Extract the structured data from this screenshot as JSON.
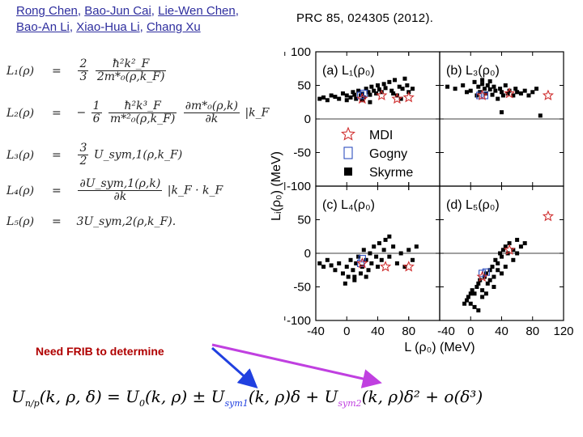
{
  "authors": {
    "line1": [
      {
        "name": "Rong Chen",
        "sep": ", "
      },
      {
        "name": "Bao-Jun Cai",
        "sep": ", "
      },
      {
        "name": "Lie-Wen Chen",
        "sep": ","
      }
    ],
    "line2": [
      {
        "name": "Bao-An Li",
        "sep": ", "
      },
      {
        "name": "Xiao-Hua Li",
        "sep": ", "
      },
      {
        "name": "Chang Xu",
        "sep": ""
      }
    ]
  },
  "reference": "PRC 85, 024305 (2012).",
  "equations": [
    {
      "lhs": "L₁(ρ)",
      "rhs_prefix": "",
      "frac1_num": "2",
      "frac1_den": "3",
      "frac2_num": "ħ²k²_F",
      "frac2_den": "2m*₀(ρ,k_F)",
      "suffix": ""
    },
    {
      "lhs": "L₂(ρ)",
      "rhs_prefix": "−",
      "frac1_num": "1",
      "frac1_den": "6",
      "frac2_num": "ħ²k³_F",
      "frac2_den": "m*²₀(ρ,k_F)",
      "frac3_num": "∂m*₀(ρ,k)",
      "frac3_den": "∂k",
      "suffix": "|k_F"
    },
    {
      "lhs": "L₃(ρ)",
      "rhs_prefix": "",
      "frac1_num": "3",
      "frac1_den": "2",
      "frac2_num": "",
      "frac2_den": "",
      "suffix": "U_sym,1(ρ,k_F)"
    },
    {
      "lhs": "L₄(ρ)",
      "rhs_prefix": "",
      "frac1_num": "∂U_sym,1(ρ,k)",
      "frac1_den": "∂k",
      "frac2_num": "",
      "frac2_den": "",
      "suffix": "|k_F · k_F"
    },
    {
      "lhs": "L₅(ρ)",
      "rhs_prefix": "",
      "frac1_num": "",
      "frac1_den": "",
      "frac2_num": "",
      "frac2_den": "",
      "suffix": "3U_sym,2(ρ,k_F)."
    }
  ],
  "note": "Need FRIB to determine",
  "formula": {
    "part1": "U",
    "sub1": "n/p",
    "part2": "(k, ρ, δ) = U",
    "sub2": "0",
    "part3": "(k, ρ) ± U",
    "sub3": "sym1",
    "part4": "(k, ρ)δ + U",
    "sub4": "sym2",
    "part5": "(k, ρ)δ² + o(δ³)"
  },
  "colors": {
    "author_link": "#2e2e9e",
    "note": "#b00000",
    "arrow_blue": "#2040e0",
    "arrow_pink": "#c040e0",
    "mdi_star": "#d03030",
    "gogny": "#3050c0"
  },
  "chart_data": {
    "type": "scatter",
    "ylabel": "Lᵢ(ρ₀) (MeV)",
    "xlabel": "L (ρ₀) (MeV)",
    "xlim": [
      -40,
      120
    ],
    "ylim": [
      -100,
      100
    ],
    "y_ticks_top": [
      "100",
      "50",
      "0",
      "-50",
      "-100"
    ],
    "y_ticks_bottom": [
      "50",
      "0",
      "-50",
      "-100"
    ],
    "x_ticks_left": [
      "-40",
      "0",
      "40",
      "80"
    ],
    "x_ticks_right": [
      "-40",
      "0",
      "40",
      "80",
      "120"
    ],
    "legend": [
      {
        "label": "MDI",
        "marker": "star"
      },
      {
        "label": "Gogny",
        "marker": "open-square"
      },
      {
        "label": "Skyrme",
        "marker": "filled-square"
      }
    ],
    "legend_location": "center-left",
    "panels": [
      {
        "id": "a",
        "label": "(a) L₁(ρ₀)",
        "skyrme": [
          [
            -35,
            30
          ],
          [
            -30,
            32
          ],
          [
            -25,
            28
          ],
          [
            -20,
            35
          ],
          [
            -15,
            33
          ],
          [
            -10,
            30
          ],
          [
            -5,
            38
          ],
          [
            0,
            35
          ],
          [
            5,
            32
          ],
          [
            8,
            40
          ],
          [
            10,
            36
          ],
          [
            12,
            30
          ],
          [
            15,
            42
          ],
          [
            18,
            35
          ],
          [
            20,
            38
          ],
          [
            22,
            32
          ],
          [
            25,
            45
          ],
          [
            28,
            40
          ],
          [
            30,
            36
          ],
          [
            32,
            48
          ],
          [
            35,
            42
          ],
          [
            38,
            38
          ],
          [
            40,
            50
          ],
          [
            42,
            44
          ],
          [
            45,
            40
          ],
          [
            48,
            52
          ],
          [
            50,
            46
          ],
          [
            55,
            55
          ],
          [
            58,
            42
          ],
          [
            60,
            38
          ],
          [
            62,
            58
          ],
          [
            65,
            35
          ],
          [
            68,
            48
          ],
          [
            70,
            30
          ],
          [
            72,
            45
          ],
          [
            75,
            60
          ],
          [
            78,
            50
          ],
          [
            80,
            40
          ],
          [
            85,
            45
          ],
          [
            30,
            25
          ],
          [
            20,
            28
          ],
          [
            0,
            28
          ]
        ],
        "gogny": [
          [
            18,
            35
          ],
          [
            22,
            38
          ]
        ],
        "mdi": [
          [
            20,
            30
          ],
          [
            45,
            35
          ],
          [
            65,
            30
          ],
          [
            80,
            32
          ]
        ]
      },
      {
        "id": "b",
        "label": "(b) L₃(ρ₀)",
        "skyrme": [
          [
            -30,
            48
          ],
          [
            -20,
            45
          ],
          [
            -10,
            50
          ],
          [
            0,
            42
          ],
          [
            5,
            55
          ],
          [
            10,
            48
          ],
          [
            12,
            40
          ],
          [
            15,
            52
          ],
          [
            18,
            45
          ],
          [
            20,
            38
          ],
          [
            22,
            50
          ],
          [
            25,
            44
          ],
          [
            28,
            36
          ],
          [
            30,
            48
          ],
          [
            32,
            42
          ],
          [
            35,
            30
          ],
          [
            38,
            45
          ],
          [
            40,
            40
          ],
          [
            42,
            35
          ],
          [
            45,
            50
          ],
          [
            48,
            38
          ],
          [
            50,
            42
          ],
          [
            55,
            35
          ],
          [
            58,
            45
          ],
          [
            60,
            40
          ],
          [
            65,
            38
          ],
          [
            70,
            42
          ],
          [
            75,
            35
          ],
          [
            80,
            40
          ],
          [
            85,
            45
          ],
          [
            -5,
            40
          ],
          [
            8,
            35
          ],
          [
            40,
            10
          ],
          [
            90,
            5
          ],
          [
            15,
            58
          ],
          [
            25,
            56
          ]
        ],
        "gogny": [
          [
            12,
            35
          ],
          [
            18,
            35
          ]
        ],
        "mdi": [
          [
            15,
            35
          ],
          [
            50,
            38
          ],
          [
            100,
            35
          ]
        ]
      },
      {
        "id": "c",
        "label": "(c) L₄(ρ₀)",
        "skyrme": [
          [
            -35,
            -15
          ],
          [
            -30,
            -20
          ],
          [
            -25,
            -10
          ],
          [
            -20,
            -18
          ],
          [
            -15,
            -25
          ],
          [
            -10,
            -15
          ],
          [
            -5,
            -30
          ],
          [
            0,
            -20
          ],
          [
            2,
            -35
          ],
          [
            5,
            -10
          ],
          [
            8,
            -25
          ],
          [
            10,
            -40
          ],
          [
            12,
            -15
          ],
          [
            15,
            -5
          ],
          [
            18,
            -30
          ],
          [
            20,
            -20
          ],
          [
            22,
            5
          ],
          [
            25,
            -10
          ],
          [
            28,
            -25
          ],
          [
            30,
            0
          ],
          [
            32,
            -15
          ],
          [
            35,
            10
          ],
          [
            38,
            -5
          ],
          [
            40,
            -20
          ],
          [
            42,
            15
          ],
          [
            45,
            -10
          ],
          [
            48,
            5
          ],
          [
            50,
            20
          ],
          [
            55,
            -5
          ],
          [
            60,
            10
          ],
          [
            65,
            -15
          ],
          [
            70,
            0
          ],
          [
            75,
            -20
          ],
          [
            80,
            5
          ],
          [
            85,
            -10
          ],
          [
            90,
            10
          ],
          [
            -2,
            -45
          ],
          [
            10,
            -35
          ],
          [
            25,
            -35
          ],
          [
            55,
            25
          ]
        ],
        "gogny": [
          [
            18,
            -15
          ],
          [
            20,
            -8
          ]
        ],
        "mdi": [
          [
            20,
            -15
          ],
          [
            50,
            -20
          ],
          [
            80,
            -20
          ]
        ]
      },
      {
        "id": "d",
        "label": "(d) L₅(ρ₀)",
        "skyrme": [
          [
            -5,
            -70
          ],
          [
            0,
            -75
          ],
          [
            -3,
            -65
          ],
          [
            2,
            -55
          ],
          [
            5,
            -60
          ],
          [
            8,
            -50
          ],
          [
            10,
            -45
          ],
          [
            12,
            -40
          ],
          [
            15,
            -55
          ],
          [
            18,
            -35
          ],
          [
            20,
            -30
          ],
          [
            22,
            -45
          ],
          [
            25,
            -25
          ],
          [
            28,
            -20
          ],
          [
            30,
            -35
          ],
          [
            32,
            -10
          ],
          [
            35,
            -15
          ],
          [
            38,
            0
          ],
          [
            40,
            -5
          ],
          [
            42,
            5
          ],
          [
            45,
            10
          ],
          [
            48,
            0
          ],
          [
            50,
            15
          ],
          [
            55,
            5
          ],
          [
            60,
            20
          ],
          [
            65,
            10
          ],
          [
            70,
            15
          ],
          [
            5,
            -80
          ],
          [
            10,
            -85
          ],
          [
            0,
            -60
          ],
          [
            15,
            -65
          ],
          [
            25,
            -40
          ],
          [
            30,
            -50
          ],
          [
            35,
            -25
          ],
          [
            45,
            -20
          ],
          [
            55,
            -10
          ],
          [
            20,
            -60
          ],
          [
            -8,
            -75
          ],
          [
            40,
            -30
          ],
          [
            60,
            0
          ]
        ],
        "gogny": [
          [
            15,
            -30
          ],
          [
            20,
            -28
          ]
        ],
        "mdi": [
          [
            15,
            -35
          ],
          [
            50,
            5
          ],
          [
            100,
            55
          ]
        ]
      }
    ]
  }
}
